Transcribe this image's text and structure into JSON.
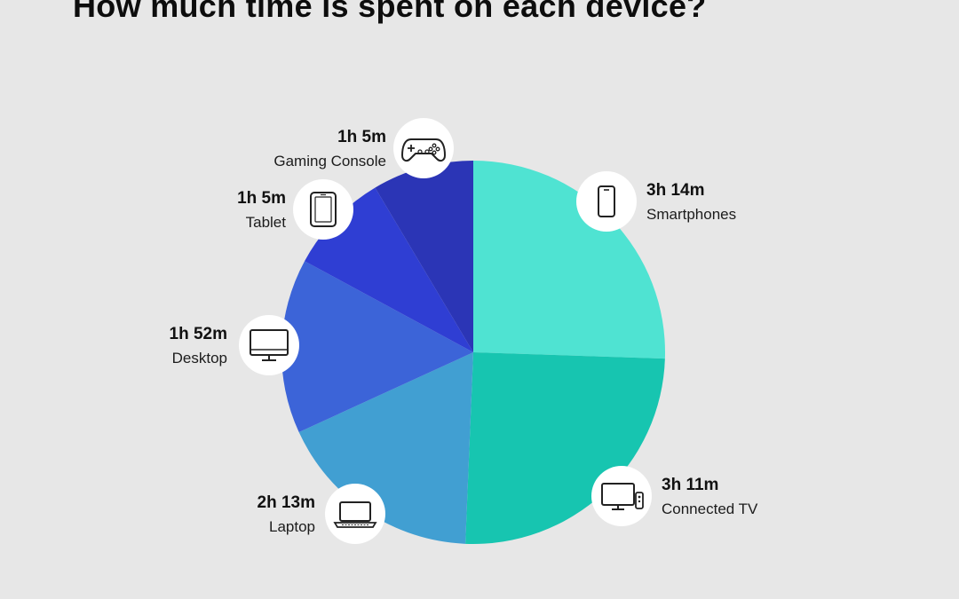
{
  "title": "How much time is spent on each device?",
  "chart_data": {
    "type": "pie",
    "title": "How much time is spent on each device?",
    "unit": "minutes",
    "slices": [
      {
        "name": "Smartphones",
        "value": 194,
        "value_label": "3h 14m",
        "color": "#4fe3d2",
        "icon": "smartphone-icon"
      },
      {
        "name": "Connected TV",
        "value": 191,
        "value_label": "3h 11m",
        "color": "#17c5b0",
        "icon": "tv-icon"
      },
      {
        "name": "Laptop",
        "value": 133,
        "value_label": "2h 13m",
        "color": "#419fd2",
        "icon": "laptop-icon"
      },
      {
        "name": "Desktop",
        "value": 112,
        "value_label": "1h 52m",
        "color": "#3c64d8",
        "icon": "desktop-icon"
      },
      {
        "name": "Tablet",
        "value": 65,
        "value_label": "1h 5m",
        "color": "#2f3ed3",
        "icon": "tablet-icon"
      },
      {
        "name": "Gaming Console",
        "value": 65,
        "value_label": "1h 5m",
        "color": "#2b35b6",
        "icon": "gamepad-icon"
      }
    ]
  }
}
